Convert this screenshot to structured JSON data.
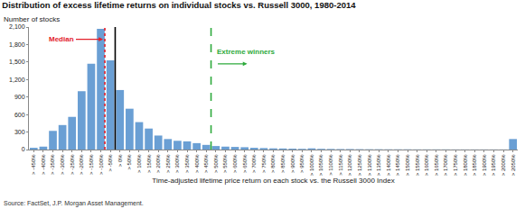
{
  "chart_data": {
    "type": "histogram",
    "title": "Distribution of excess lifetime returns on individual stocks vs. Russell 3000, 1980-2014",
    "subtitle": "Number of stocks",
    "x_label": "Time-adjusted lifetime price return on each stock vs. the Russell 3000 Index",
    "source": "Source: FactSet, J.P. Morgan Asset Management.",
    "categories": [
      "> -450%",
      "> -400%",
      "> -350%",
      "> -300%",
      "> -250%",
      "> -200%",
      "> -150%",
      "> -100%",
      "> -50%",
      "> 0%",
      "> 50%",
      "> 100%",
      "> 150%",
      "> 200%",
      "> 250%",
      "> 300%",
      "> 350%",
      "> 400%",
      "> 450%",
      "> 500%",
      "> 550%",
      "> 600%",
      "> 650%",
      "> 700%",
      "> 750%",
      "> 800%",
      "> 850%",
      "> 900%",
      "> 950%",
      "> 1000%",
      "> 1050%",
      "> 1100%",
      "> 1150%",
      "> 1200%",
      "> 1250%",
      "> 1300%",
      "> 1350%",
      "> 1400%",
      "> 1450%",
      "> 1500%",
      "> 1550%",
      "> 1600%",
      "> 1650%",
      "> 1700%",
      "> 1750%",
      "> 1800%",
      "> 1850%",
      "> 1900%",
      "> 1950%",
      "> 2000%",
      "> 2050%"
    ],
    "bins": [
      -450,
      -400,
      -350,
      -300,
      -250,
      -200,
      -150,
      -100,
      -50,
      0,
      50,
      100,
      150,
      200,
      250,
      300,
      350,
      400,
      450,
      500,
      550,
      600,
      650,
      700,
      750,
      800,
      850,
      900,
      950,
      1000,
      1050,
      1100,
      1150,
      1200,
      1250,
      1300,
      1350,
      1400,
      1450,
      1500,
      1550,
      1600,
      1650,
      1700,
      1750,
      1800,
      1850,
      1900,
      1950,
      2000,
      2050,
      2100
    ],
    "values": [
      30,
      50,
      320,
      420,
      560,
      1000,
      1470,
      2070,
      1530,
      1020,
      700,
      470,
      360,
      240,
      180,
      150,
      140,
      110,
      80,
      60,
      50,
      45,
      40,
      30,
      25,
      20,
      18,
      15,
      12,
      20,
      12,
      10,
      8,
      8,
      6,
      5,
      5,
      4,
      4,
      4,
      3,
      3,
      3,
      3,
      2,
      2,
      2,
      2,
      2,
      2,
      180
    ],
    "color": "#6a9fd4",
    "xlim": [
      -450,
      2100
    ],
    "ylim": [
      0,
      2100
    ],
    "yticks": [
      0,
      300,
      600,
      900,
      {
        "value": 1200,
        "label": "1,200"
      },
      {
        "value": 1500,
        "label": "1,500"
      },
      {
        "value": 1800,
        "label": "1,800"
      },
      {
        "value": 2100,
        "label": "2,100"
      }
    ],
    "grid": false,
    "reference_lines": [
      {
        "x": -54,
        "label": "Median",
        "color": "#e3202a",
        "line_style": "dotted"
      },
      {
        "x": 0,
        "color": "#000000",
        "line_style": "solid"
      },
      {
        "x": 500,
        "label": "Extreme winners",
        "color": "#2eaa3c",
        "line_style": "dashed"
      }
    ]
  }
}
